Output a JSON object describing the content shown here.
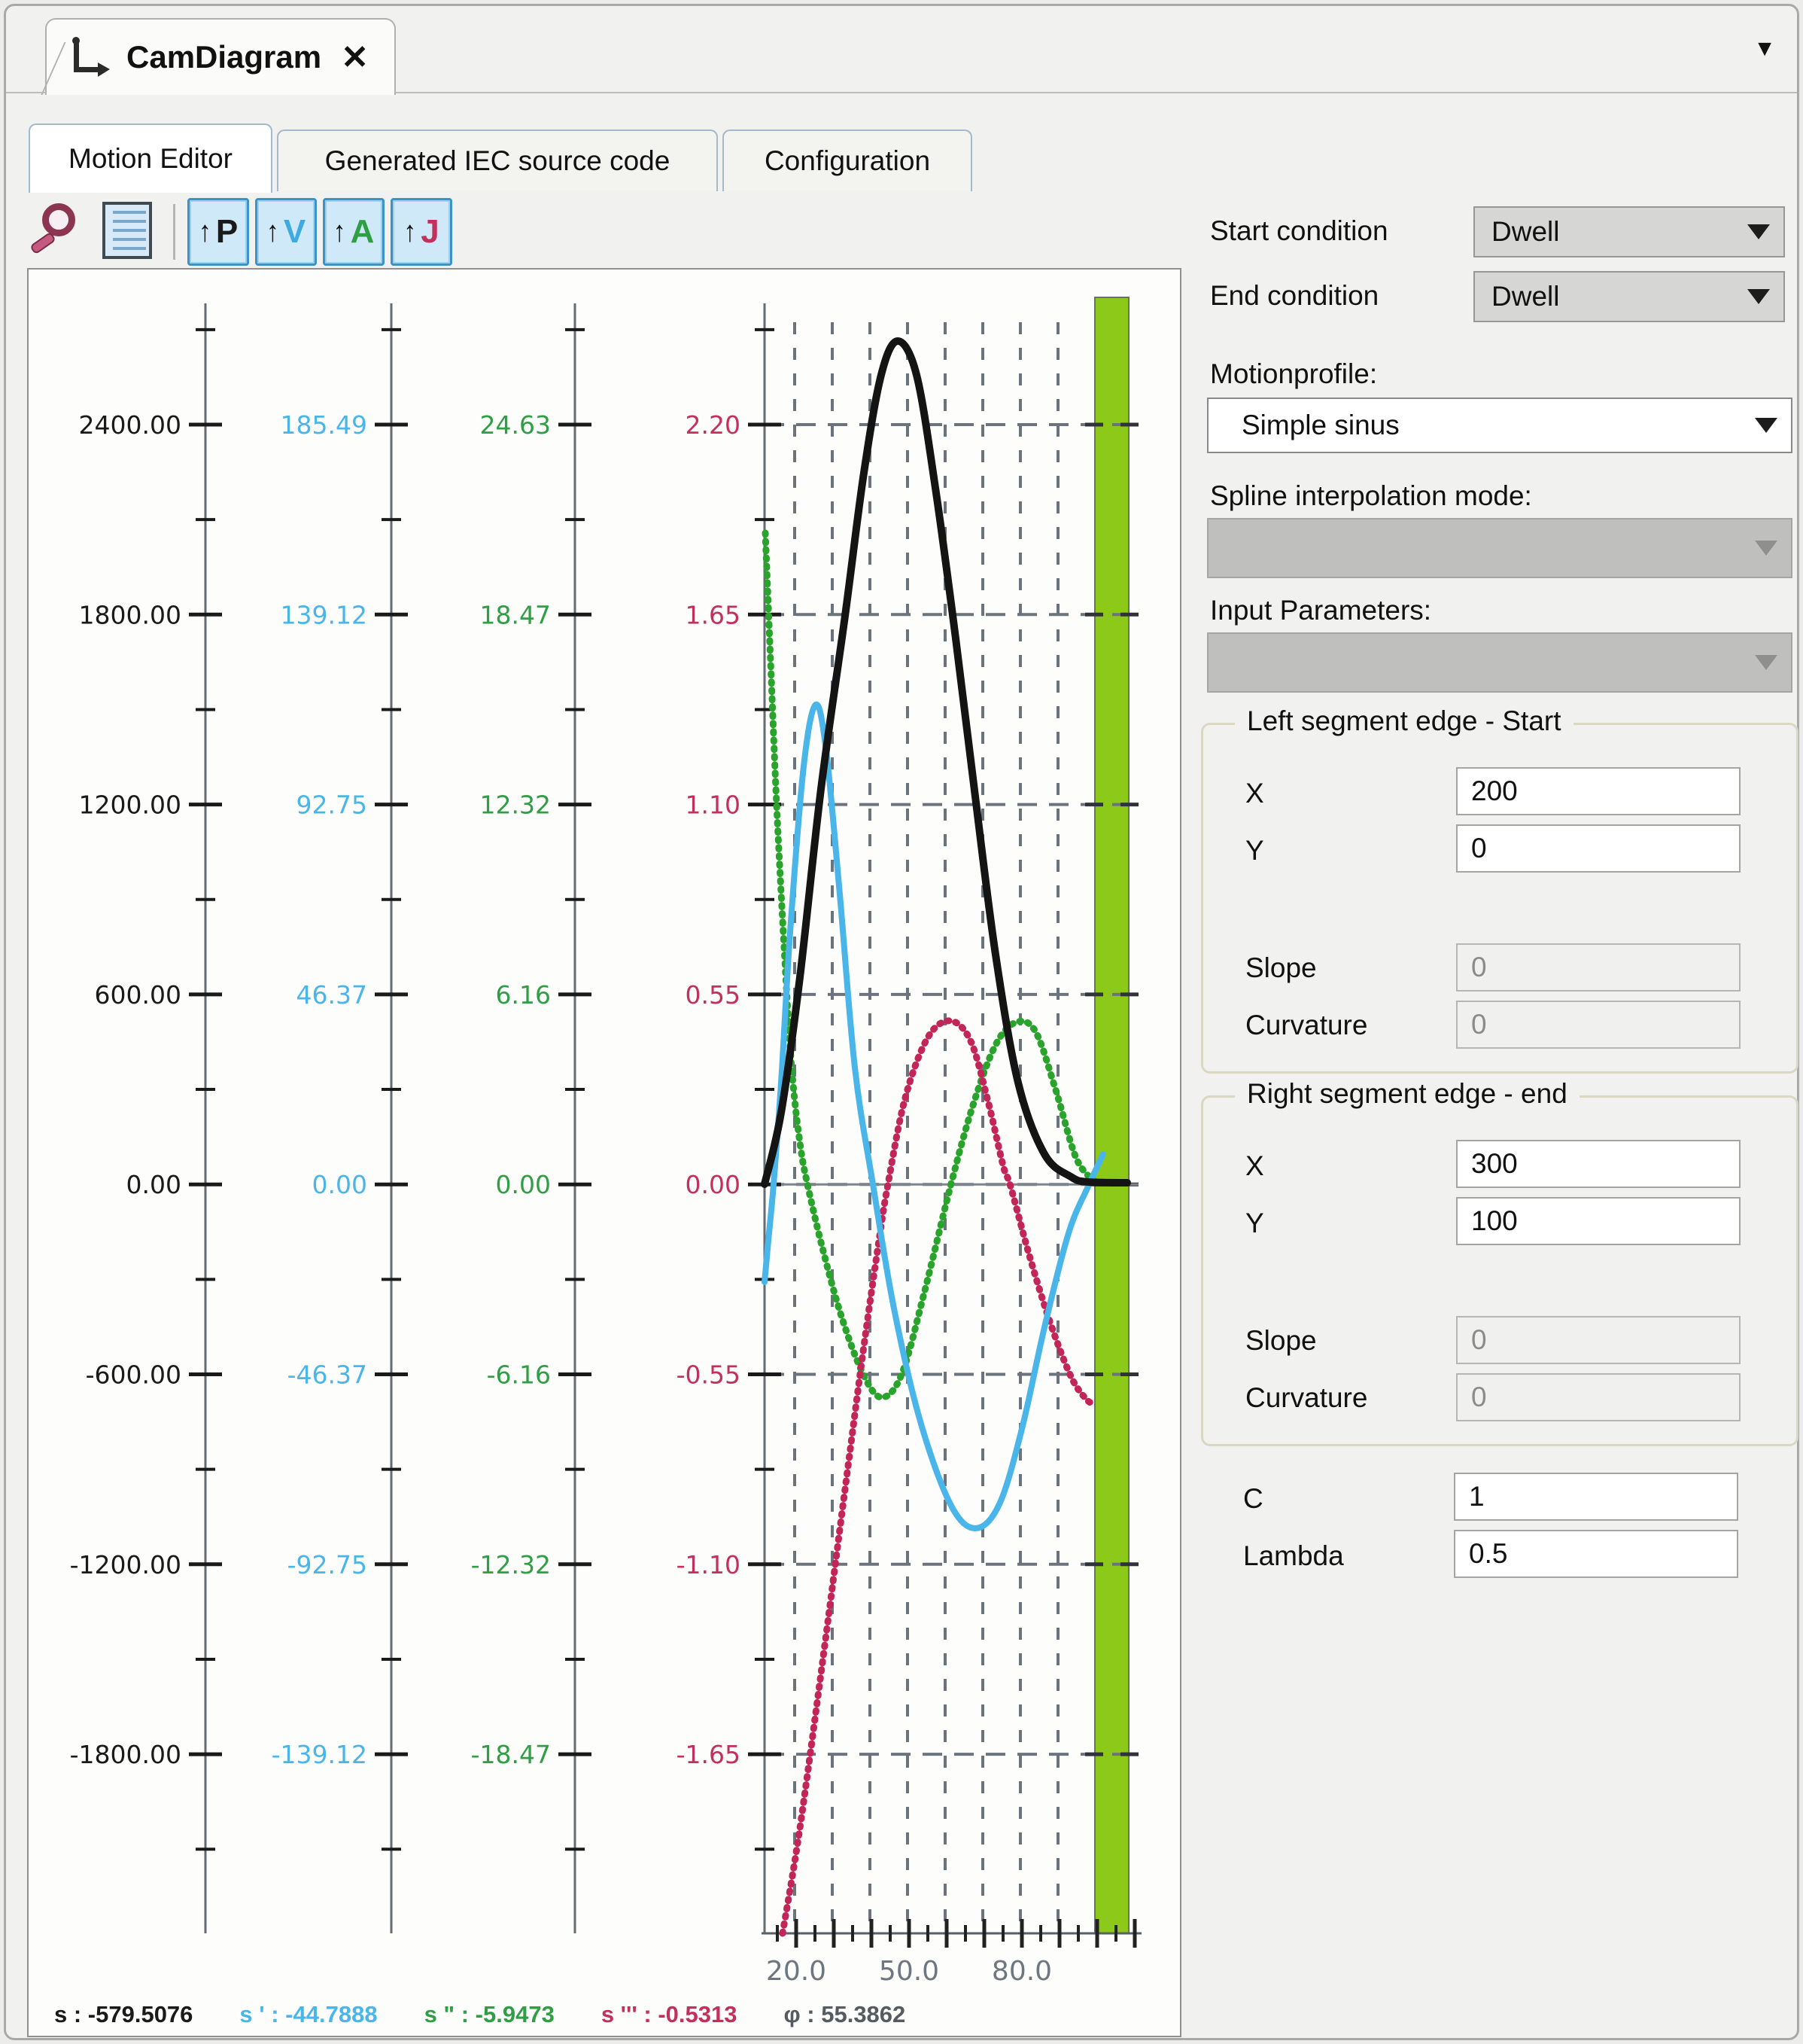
{
  "window": {
    "tab_title": "CamDiagram",
    "close_label": "✕",
    "caret": "▼"
  },
  "tabs": [
    {
      "label": "Motion Editor",
      "active": true
    },
    {
      "label": "Generated IEC source code",
      "active": false
    },
    {
      "label": "Configuration",
      "active": false
    }
  ],
  "toolbar": {
    "buttons": [
      {
        "name": "position",
        "letter": "P",
        "color": "#1a1a1a"
      },
      {
        "name": "velocity",
        "letter": "V",
        "color": "#3fa9e0"
      },
      {
        "name": "acceleration",
        "letter": "A",
        "color": "#2f9e44"
      },
      {
        "name": "jerk",
        "letter": "J",
        "color": "#c1315c"
      }
    ]
  },
  "chart_data": {
    "type": "line",
    "axes": [
      {
        "name": "position",
        "color": "#1a1a1a",
        "x": 235,
        "tick_labels": [
          "2400.00",
          "1800.00",
          "1200.00",
          "600.00",
          "0.00",
          "-600.00",
          "-1200.00",
          "-1800.00"
        ]
      },
      {
        "name": "velocity",
        "color": "#4ab5e8",
        "x": 482,
        "tick_labels": [
          "185.49",
          "139.12",
          "92.75",
          "46.37",
          "0.00",
          "-46.37",
          "-92.75",
          "-139.12"
        ]
      },
      {
        "name": "acceleration",
        "color": "#2f9e44",
        "x": 726,
        "tick_labels": [
          "24.63",
          "18.47",
          "12.32",
          "6.16",
          "0.00",
          "-6.16",
          "-12.32",
          "-18.47"
        ]
      },
      {
        "name": "jerk",
        "color": "#c1315c",
        "x": 978,
        "tick_labels": [
          "2.20",
          "1.65",
          "1.10",
          "0.55",
          "0.00",
          "-0.55",
          "-1.10",
          "-1.65"
        ]
      }
    ],
    "x_ticks": [
      {
        "text": "20.0",
        "x": 1020
      },
      {
        "text": "50.0",
        "x": 1170
      },
      {
        "text": "80.0",
        "x": 1320
      }
    ],
    "highlight_bar": {
      "color": "#8dc918",
      "x": 1417,
      "width": 45
    },
    "series": [
      {
        "name": "acceleration",
        "color": "#2aa32c",
        "width": 9,
        "dash": "2 9",
        "points": [
          [
            979,
            350
          ],
          [
            986,
            520
          ],
          [
            994,
            710
          ],
          [
            1004,
            900
          ],
          [
            1014,
            1060
          ],
          [
            1025,
            1160
          ],
          [
            1035,
            1215
          ],
          [
            1055,
            1300
          ],
          [
            1080,
            1390
          ],
          [
            1108,
            1465
          ],
          [
            1133,
            1498
          ],
          [
            1160,
            1468
          ],
          [
            1190,
            1360
          ],
          [
            1225,
            1218
          ],
          [
            1255,
            1110
          ],
          [
            1285,
            1030
          ],
          [
            1312,
            1000
          ],
          [
            1338,
            1012
          ],
          [
            1365,
            1090
          ],
          [
            1392,
            1180
          ],
          [
            1417,
            1212
          ]
        ]
      },
      {
        "name": "jerk",
        "color": "#c22558",
        "width": 9,
        "dash": "2 9",
        "points": [
          [
            1002,
            2210
          ],
          [
            1025,
            2070
          ],
          [
            1055,
            1850
          ],
          [
            1085,
            1620
          ],
          [
            1110,
            1430
          ],
          [
            1130,
            1290
          ],
          [
            1142,
            1215
          ],
          [
            1165,
            1100
          ],
          [
            1195,
            1020
          ],
          [
            1225,
            998
          ],
          [
            1252,
            1025
          ],
          [
            1275,
            1105
          ],
          [
            1295,
            1190
          ],
          [
            1305,
            1218
          ],
          [
            1330,
            1310
          ],
          [
            1358,
            1400
          ],
          [
            1385,
            1470
          ],
          [
            1405,
            1500
          ],
          [
            1416,
            1507
          ]
        ]
      },
      {
        "name": "velocity",
        "color": "#4ab5e8",
        "width": 8,
        "dash": "",
        "points": [
          [
            978,
            1345
          ],
          [
            983,
            1290
          ],
          [
            990,
            1215
          ],
          [
            1000,
            1080
          ],
          [
            1012,
            880
          ],
          [
            1030,
            660
          ],
          [
            1046,
            578
          ],
          [
            1060,
            640
          ],
          [
            1078,
            830
          ],
          [
            1098,
            1060
          ],
          [
            1122,
            1215
          ],
          [
            1150,
            1380
          ],
          [
            1185,
            1530
          ],
          [
            1225,
            1640
          ],
          [
            1258,
            1672
          ],
          [
            1290,
            1640
          ],
          [
            1320,
            1540
          ],
          [
            1350,
            1405
          ],
          [
            1382,
            1280
          ],
          [
            1408,
            1218
          ],
          [
            1428,
            1175
          ]
        ]
      },
      {
        "name": "position",
        "color": "#141414",
        "width": 10,
        "dash": "",
        "points": [
          [
            978,
            1215
          ],
          [
            1000,
            1120
          ],
          [
            1025,
            940
          ],
          [
            1053,
            690
          ],
          [
            1085,
            460
          ],
          [
            1110,
            270
          ],
          [
            1133,
            140
          ],
          [
            1155,
            95
          ],
          [
            1180,
            140
          ],
          [
            1205,
            290
          ],
          [
            1232,
            490
          ],
          [
            1258,
            700
          ],
          [
            1285,
            910
          ],
          [
            1315,
            1080
          ],
          [
            1350,
            1175
          ],
          [
            1385,
            1205
          ],
          [
            1408,
            1212
          ],
          [
            1460,
            1213
          ]
        ]
      }
    ],
    "status": [
      {
        "label": "s",
        "value": "-579.5076",
        "color": "#1a1a1a"
      },
      {
        "label": "s '",
        "value": "-44.7888",
        "color": "#4ab5e8"
      },
      {
        "label": "s \"",
        "value": "-5.9473",
        "color": "#2f9e44"
      },
      {
        "label": "s '''",
        "value": "-0.5313",
        "color": "#c1315c"
      },
      {
        "label": "φ",
        "value": "55.3862",
        "color": "#555b60"
      }
    ]
  },
  "panel": {
    "start_condition": {
      "label": "Start condition",
      "value": "Dwell"
    },
    "end_condition": {
      "label": "End condition",
      "value": "Dwell"
    },
    "motionprofile": {
      "label": "Motionprofile:",
      "value": "Simple sinus"
    },
    "spline_mode": {
      "label": "Spline interpolation mode:",
      "value": ""
    },
    "input_params": {
      "label": "Input Parameters:",
      "value": ""
    },
    "left_group": {
      "title": "Left segment edge - Start",
      "x": {
        "label": "X",
        "value": "200"
      },
      "y": {
        "label": "Y",
        "value": "0"
      },
      "slope": {
        "label": "Slope",
        "value": "0"
      },
      "curvature": {
        "label": "Curvature",
        "value": "0"
      }
    },
    "right_group": {
      "title": "Right segment edge - end",
      "x": {
        "label": "X",
        "value": "300"
      },
      "y": {
        "label": "Y",
        "value": "100"
      },
      "slope": {
        "label": "Slope",
        "value": "0"
      },
      "curvature": {
        "label": "Curvature",
        "value": "0"
      }
    },
    "c": {
      "label": "C",
      "value": "1"
    },
    "lambda": {
      "label": "Lambda",
      "value": "0.5"
    }
  }
}
